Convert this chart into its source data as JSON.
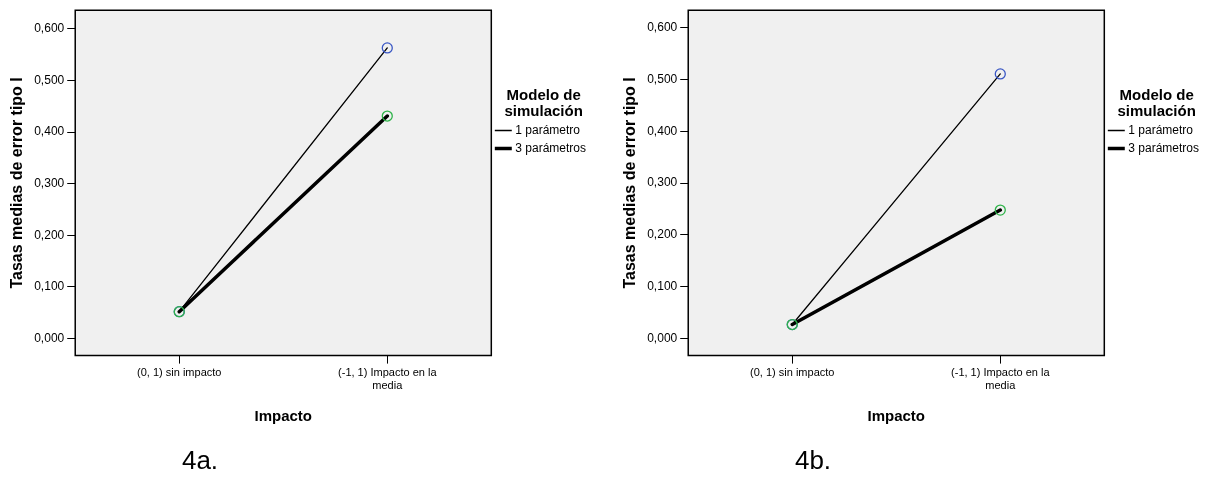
{
  "chart_data": [
    {
      "type": "line",
      "xlabel": "Impacto",
      "ylabel": "Tasas medias de error tipo I",
      "legend_title": "Modelo de simulación",
      "legend": "right",
      "marker": "circle",
      "grid": false,
      "categories": [
        "(0, 1) sin impacto",
        "(-1, 1) Impacto en la media"
      ],
      "series": [
        {
          "name": "1 parámetro",
          "color": "#000000",
          "colors": [
            "#3a57c4",
            "#3a57c4"
          ],
          "values": [
            0.052,
            0.563
          ]
        },
        {
          "name": "3 parámetros",
          "color": "#000000",
          "colors": [
            "#2fb34a",
            "#2fb34a"
          ],
          "values": [
            0.052,
            0.431
          ]
        }
      ],
      "ylim": [
        -0.033,
        0.636
      ],
      "yticks": [
        {
          "value": 0,
          "label": "0,000"
        },
        {
          "value": 0.1,
          "label": "0,100"
        },
        {
          "value": 0.2,
          "label": "0,200"
        },
        {
          "value": 0.3,
          "label": "0,300"
        },
        {
          "value": 0.4,
          "label": "0,400"
        },
        {
          "value": 0.5,
          "label": "0,500"
        },
        {
          "value": 0.6,
          "label": "0,600"
        }
      ],
      "annotations": [
        "4a."
      ]
    },
    {
      "type": "line",
      "xlabel": "Impacto",
      "ylabel": "Tasas medias de error tipo I",
      "legend_title": "Modelo de simulación",
      "legend": "right",
      "marker": "circle",
      "grid": false,
      "categories": [
        "(0, 1) sin impacto",
        "(-1, 1) Impacto en la media"
      ],
      "series": [
        {
          "name": "1 parámetro",
          "color": "#000000",
          "colors": [
            "#3a57c4",
            "#3a57c4"
          ],
          "values": [
            0.027,
            0.511
          ]
        },
        {
          "name": "3 parámetros",
          "color": "#000000",
          "colors": [
            "#2fb34a",
            "#2fb34a"
          ],
          "values": [
            0.027,
            0.248
          ]
        }
      ],
      "ylim": [
        -0.033,
        0.634
      ],
      "yticks": [
        {
          "value": 0,
          "label": "0,000"
        },
        {
          "value": 0.1,
          "label": "0,100"
        },
        {
          "value": 0.2,
          "label": "0,200"
        },
        {
          "value": 0.3,
          "label": "0,300"
        },
        {
          "value": 0.4,
          "label": "0,400"
        },
        {
          "value": 0.5,
          "label": "0,500"
        },
        {
          "value": 0.6,
          "label": "0,600"
        }
      ],
      "annotations": [
        "4b."
      ]
    }
  ]
}
